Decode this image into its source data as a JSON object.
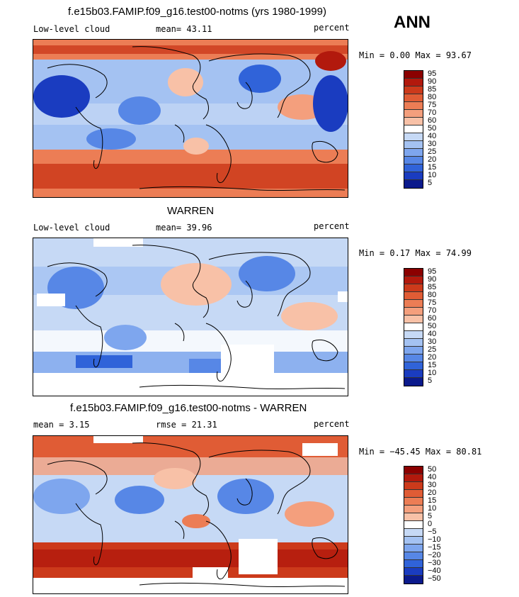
{
  "season": "ANN",
  "panels": [
    {
      "title": "f.e15b03.FAMIP.f09_g16.test00-notms (yrs 1980-1999)",
      "left_label": "Low-level cloud",
      "stat_label": "mean=  43.11",
      "units": "percent",
      "minmax": "Min =   0.00 Max =  93.67",
      "colorbar": [
        "95",
        "90",
        "85",
        "80",
        "75",
        "70",
        "60",
        "50",
        "40",
        "30",
        "25",
        "20",
        "15",
        "10",
        "5"
      ],
      "theme": "model"
    },
    {
      "title": "WARREN",
      "left_label": "Low-level cloud",
      "stat_label": "mean=  39.96",
      "units": "percent",
      "minmax": "Min =   0.17 Max =  74.99",
      "colorbar": [
        "95",
        "90",
        "85",
        "80",
        "75",
        "70",
        "60",
        "50",
        "40",
        "30",
        "25",
        "20",
        "15",
        "10",
        "5"
      ],
      "theme": "obs"
    },
    {
      "title": "f.e15b03.FAMIP.f09_g16.test00-notms - WARREN",
      "left_label": "mean =   3.15",
      "stat_label": "rmse =  21.31",
      "units": "percent",
      "minmax": "Min = −45.45 Max =  80.81",
      "colorbar": [
        "50",
        "40",
        "30",
        "20",
        "15",
        "10",
        "5",
        "0",
        "−5",
        "−10",
        "−15",
        "−20",
        "−30",
        "−40",
        "−50"
      ],
      "theme": "diff"
    }
  ],
  "palette": [
    "#8b0000",
    "#b2190d",
    "#cc3a1b",
    "#e05c35",
    "#ec7d55",
    "#f49f7d",
    "#f8c1a7",
    "#ffffff",
    "#c6d9f5",
    "#a4c2f2",
    "#7ea6ee",
    "#5787e6",
    "#3063d9",
    "#1a3cc0",
    "#0b1a8c"
  ],
  "chart_data": [
    {
      "type": "heatmap",
      "title": "f.e15b03.FAMIP.f09_g16.test00-notms (yrs 1980-1999)",
      "variable": "Low-level cloud",
      "units": "percent",
      "mean": 43.11,
      "min": 0.0,
      "max": 93.67,
      "levels": [
        5,
        10,
        15,
        20,
        25,
        30,
        40,
        50,
        60,
        70,
        75,
        80,
        85,
        90,
        95
      ]
    },
    {
      "type": "heatmap",
      "title": "WARREN",
      "variable": "Low-level cloud",
      "units": "percent",
      "mean": 39.96,
      "min": 0.17,
      "max": 74.99,
      "levels": [
        5,
        10,
        15,
        20,
        25,
        30,
        40,
        50,
        60,
        70,
        75,
        80,
        85,
        90,
        95
      ]
    },
    {
      "type": "heatmap",
      "title": "f.e15b03.FAMIP.f09_g16.test00-notms - WARREN",
      "units": "percent",
      "mean": 3.15,
      "rmse": 21.31,
      "min": -45.45,
      "max": 80.81,
      "levels": [
        -50,
        -40,
        -30,
        -20,
        -15,
        -10,
        -5,
        0,
        5,
        10,
        15,
        20,
        30,
        40,
        50
      ]
    }
  ]
}
